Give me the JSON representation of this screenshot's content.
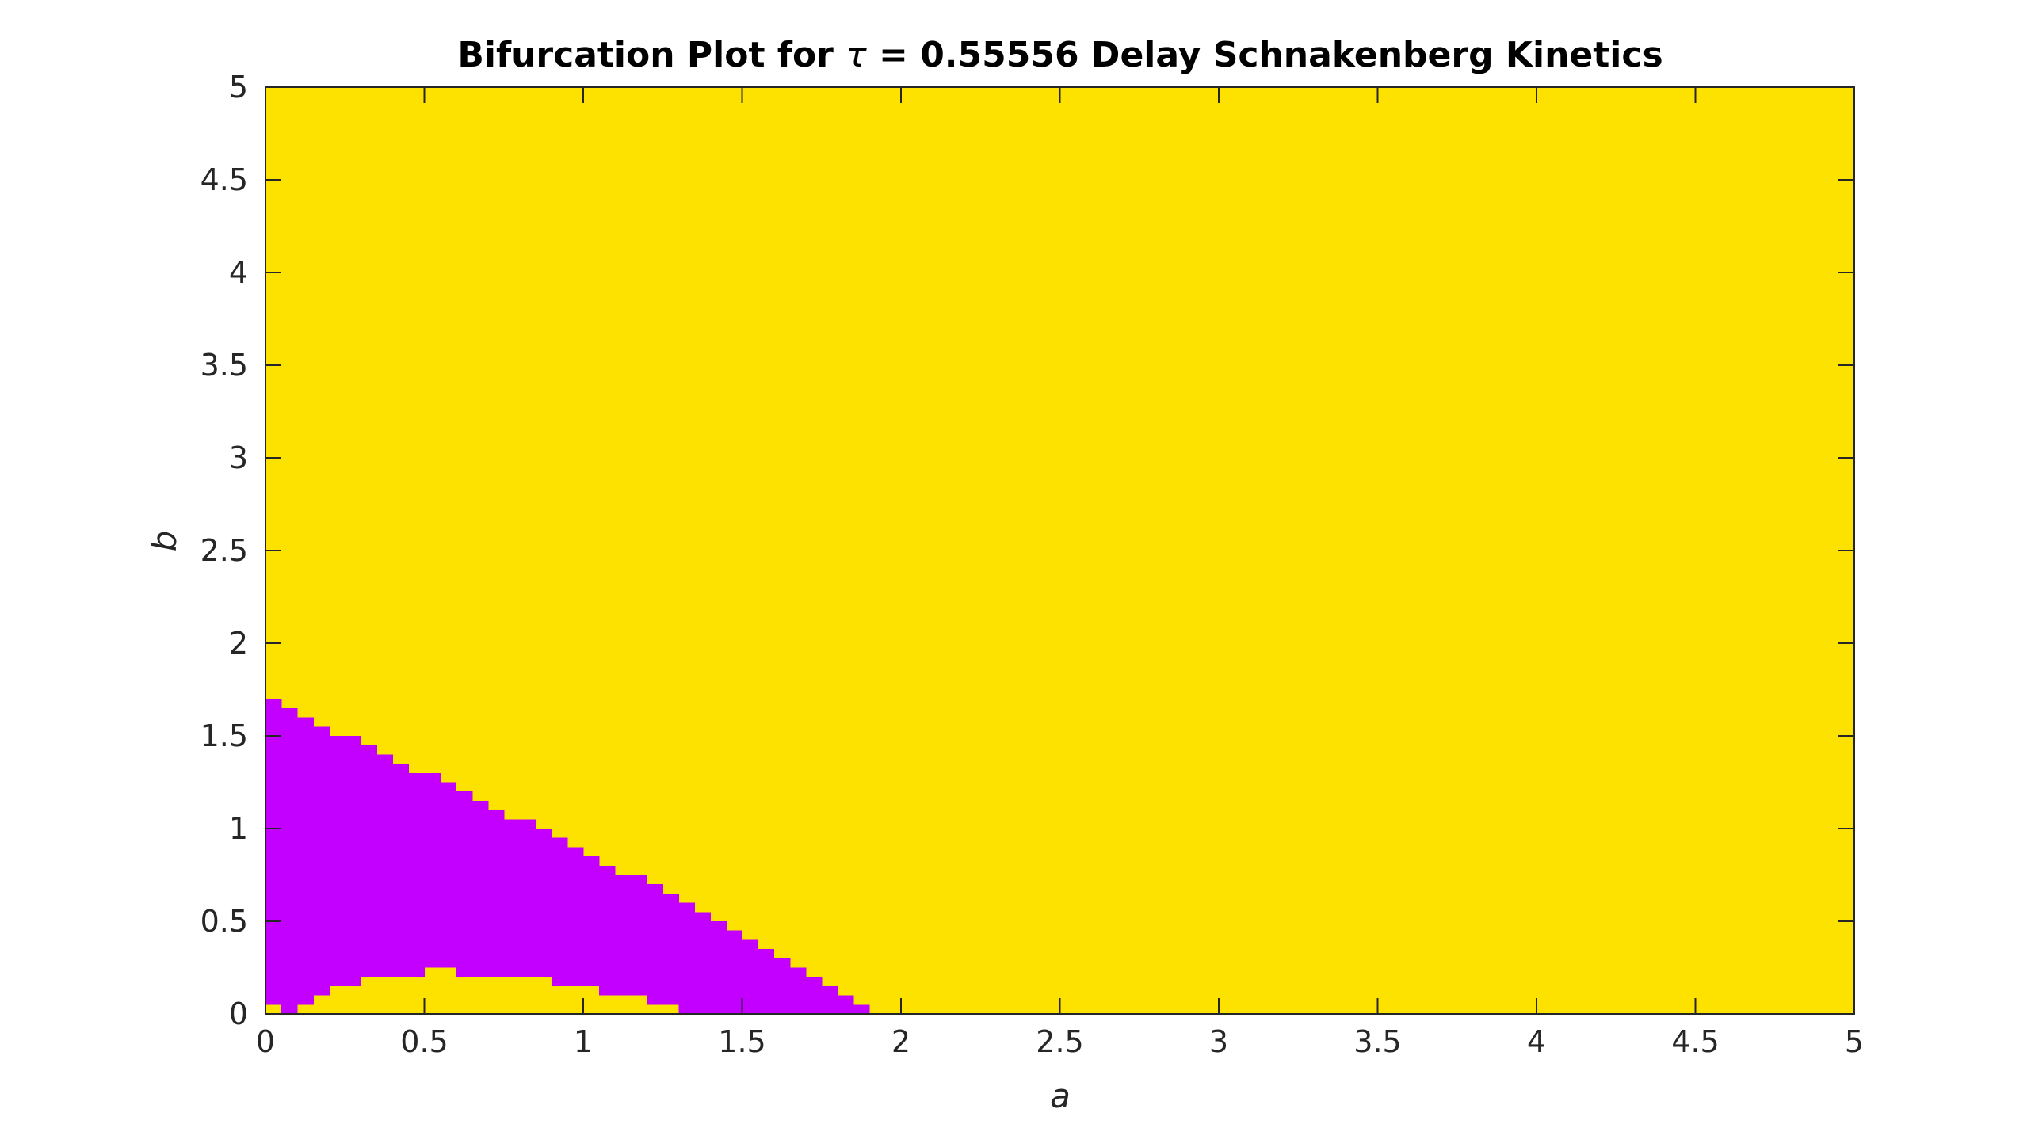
{
  "chart_data": {
    "type": "heatmap",
    "title_prefix": "Bifurcation Plot for ",
    "title_symbol": "τ",
    "title_suffix": " = 0.55556 Delay Schnakenberg Kinetics",
    "xlabel": "a",
    "ylabel": "b",
    "xlim": [
      0,
      5
    ],
    "ylim": [
      0,
      5
    ],
    "x_ticks": [
      0,
      0.5,
      1,
      1.5,
      2,
      2.5,
      3,
      3.5,
      4,
      4.5,
      5
    ],
    "x_tick_labels": [
      "0",
      "0.5",
      "1",
      "1.5",
      "2",
      "2.5",
      "3",
      "3.5",
      "4",
      "4.5",
      "5"
    ],
    "y_ticks": [
      0,
      0.5,
      1,
      1.5,
      2,
      2.5,
      3,
      3.5,
      4,
      4.5,
      5
    ],
    "y_tick_labels": [
      "0",
      "0.5",
      "1",
      "1.5",
      "2",
      "2.5",
      "3",
      "3.5",
      "4",
      "4.5",
      "5"
    ],
    "grid": false,
    "cell_width": 0.05,
    "background_color": "#fde200",
    "region_color": "#c300ff",
    "region_columns": [
      {
        "a": 0.0,
        "b_low": 0.0,
        "b_high": 1.7
      },
      {
        "a": 0.05,
        "b_low": 0.0,
        "b_high": 1.65
      },
      {
        "a": 0.1,
        "b_low": 0.05,
        "b_high": 1.6
      },
      {
        "a": 0.15,
        "b_low": 0.1,
        "b_high": 1.55
      },
      {
        "a": 0.2,
        "b_low": 0.15,
        "b_high": 1.5
      },
      {
        "a": 0.25,
        "b_low": 0.15,
        "b_high": 1.5
      },
      {
        "a": 0.3,
        "b_low": 0.2,
        "b_high": 1.45
      },
      {
        "a": 0.35,
        "b_low": 0.2,
        "b_high": 1.4
      },
      {
        "a": 0.4,
        "b_low": 0.2,
        "b_high": 1.35
      },
      {
        "a": 0.45,
        "b_low": 0.2,
        "b_high": 1.3
      },
      {
        "a": 0.5,
        "b_low": 0.25,
        "b_high": 1.3
      },
      {
        "a": 0.55,
        "b_low": 0.25,
        "b_high": 1.25
      },
      {
        "a": 0.6,
        "b_low": 0.2,
        "b_high": 1.2
      },
      {
        "a": 0.65,
        "b_low": 0.2,
        "b_high": 1.15
      },
      {
        "a": 0.7,
        "b_low": 0.2,
        "b_high": 1.1
      },
      {
        "a": 0.75,
        "b_low": 0.2,
        "b_high": 1.05
      },
      {
        "a": 0.8,
        "b_low": 0.2,
        "b_high": 1.05
      },
      {
        "a": 0.85,
        "b_low": 0.2,
        "b_high": 1.0
      },
      {
        "a": 0.9,
        "b_low": 0.15,
        "b_high": 0.95
      },
      {
        "a": 0.95,
        "b_low": 0.15,
        "b_high": 0.9
      },
      {
        "a": 1.0,
        "b_low": 0.15,
        "b_high": 0.85
      },
      {
        "a": 1.05,
        "b_low": 0.1,
        "b_high": 0.8
      },
      {
        "a": 1.1,
        "b_low": 0.1,
        "b_high": 0.75
      },
      {
        "a": 1.15,
        "b_low": 0.1,
        "b_high": 0.75
      },
      {
        "a": 1.2,
        "b_low": 0.05,
        "b_high": 0.7
      },
      {
        "a": 1.25,
        "b_low": 0.05,
        "b_high": 0.65
      },
      {
        "a": 1.3,
        "b_low": 0.0,
        "b_high": 0.6
      },
      {
        "a": 1.35,
        "b_low": 0.0,
        "b_high": 0.55
      },
      {
        "a": 1.4,
        "b_low": 0.0,
        "b_high": 0.5
      },
      {
        "a": 1.45,
        "b_low": 0.0,
        "b_high": 0.45
      },
      {
        "a": 1.5,
        "b_low": 0.0,
        "b_high": 0.4
      },
      {
        "a": 1.55,
        "b_low": 0.0,
        "b_high": 0.35
      },
      {
        "a": 1.6,
        "b_low": 0.0,
        "b_high": 0.3
      },
      {
        "a": 1.65,
        "b_low": 0.0,
        "b_high": 0.25
      },
      {
        "a": 1.7,
        "b_low": 0.0,
        "b_high": 0.2
      },
      {
        "a": 1.75,
        "b_low": 0.0,
        "b_high": 0.15
      },
      {
        "a": 1.8,
        "b_low": 0.0,
        "b_high": 0.1
      },
      {
        "a": 1.85,
        "b_low": 0.0,
        "b_high": 0.05
      }
    ],
    "yellow_patches": [
      {
        "a": 0.0,
        "b_low": 0.0,
        "b_high": 0.05
      }
    ]
  }
}
